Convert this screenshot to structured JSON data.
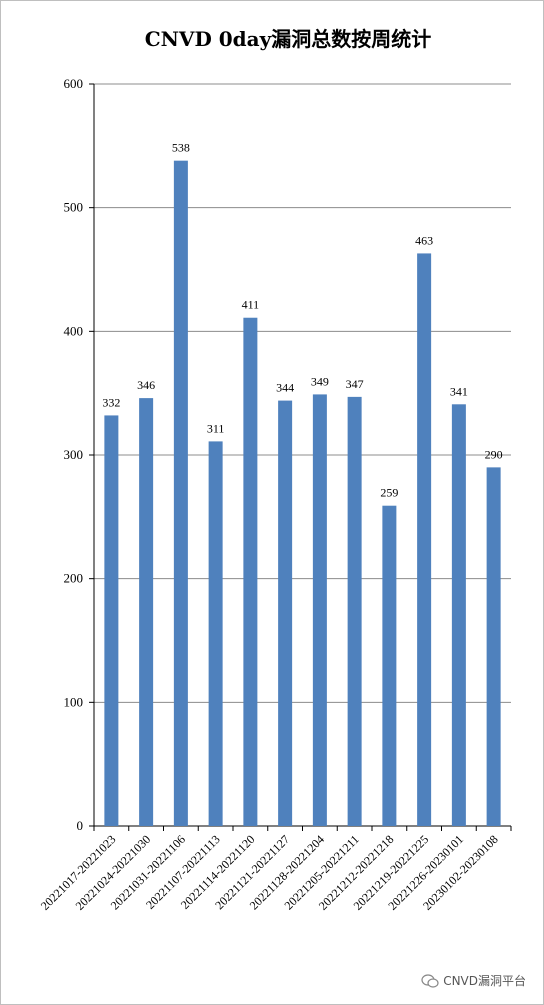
{
  "chart_data": {
    "type": "bar",
    "title": "CNVD 0day漏洞总数按周统计",
    "xlabel": "",
    "ylabel": "",
    "ylim": [
      0,
      600
    ],
    "yticks": [
      0,
      100,
      200,
      300,
      400,
      500,
      600
    ],
    "grid": true,
    "legend": "none",
    "categories": [
      "20221017-20221023",
      "20221024-20221030",
      "20221031-20221106",
      "20221107-20221113",
      "20221114-20221120",
      "20221121-20221127",
      "20221128-20221204",
      "20221205-20221211",
      "20221212-20221218",
      "20221219-20221225",
      "20221226-20230101",
      "20230102-20230108"
    ],
    "values": [
      332,
      346,
      538,
      311,
      411,
      344,
      349,
      347,
      259,
      463,
      341,
      290
    ],
    "bar_color": "#4f81bd"
  },
  "watermark": {
    "text": "CNVD漏洞平台",
    "icon": "wechat-icon"
  }
}
